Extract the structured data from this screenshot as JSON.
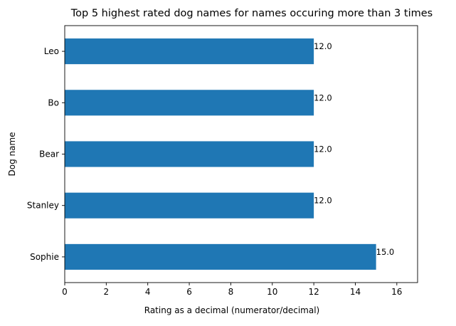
{
  "chart_data": {
    "type": "bar",
    "orientation": "horizontal",
    "title": "Top 5 highest rated dog names for names occuring more than 3 times",
    "xlabel": "Rating as a decimal (numerator/decimal)",
    "ylabel": "Dog name",
    "categories": [
      "Leo",
      "Bo",
      "Bear",
      "Stanley",
      "Sophie"
    ],
    "values": [
      12.0,
      12.0,
      12.0,
      12.0,
      15.0
    ],
    "data_labels": [
      "12.0",
      "12.0",
      "12.0",
      "12.0",
      "15.0"
    ],
    "xlim": [
      0,
      17
    ],
    "xticks": [
      0,
      2,
      4,
      6,
      8,
      10,
      12,
      14,
      16
    ],
    "grid": false,
    "legend": "none",
    "bar_color": "#1f77b4"
  }
}
